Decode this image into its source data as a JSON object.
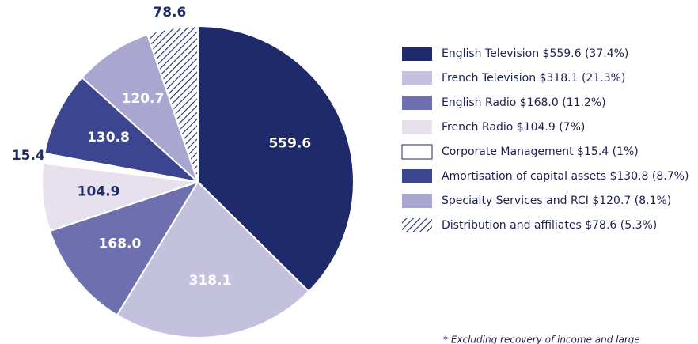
{
  "chart_data": {
    "type": "pie",
    "categories": [
      "English Television  $559.6  (37.4%)",
      "French Television  $318.1  (21.3%)",
      "English Radio  $168.0  (11.2%)",
      "French Radio  $104.9  (7%)",
      "Corporate Management  $15.4  (1%)",
      "Amortisation of capital assets  $130.8  (8.7%)",
      "Specialty Services and RCI  $120.7  (8.1%)",
      "Distribution and affiliates  $78.6  (5.3%)"
    ],
    "values": [
      559.6,
      318.1,
      168.0,
      104.9,
      15.4,
      130.8,
      120.7,
      78.6
    ],
    "value_labels": [
      "559.6",
      "318.1",
      "168.0",
      "104.9",
      "15.4",
      "130.8",
      "120.7",
      "78.6"
    ],
    "colors": [
      "#1f2a6b",
      "#c3c1de",
      "#6e6fae",
      "#e6e1ec",
      "#ffffff",
      "#3b4590",
      "#a9a6d0",
      "#1f2a6b"
    ],
    "hatched": [
      false,
      false,
      false,
      false,
      false,
      false,
      false,
      true
    ],
    "legend": "right",
    "footnote": "* Excluding recovery of income and large"
  }
}
